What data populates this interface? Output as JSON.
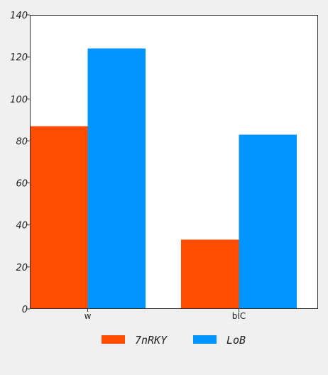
{
  "colors": {
    "page_background": "#f0f0f0",
    "plot_background": "#ffffff",
    "axis": "#333333"
  },
  "chart_data": {
    "type": "bar",
    "categories": [
      "w",
      "bIC"
    ],
    "series": [
      {
        "name": "7nRKY",
        "values": [
          87,
          33
        ],
        "color": "#ff4c00"
      },
      {
        "name": "LoB",
        "values": [
          124,
          83
        ],
        "color": "#0094ff"
      }
    ],
    "title": "",
    "xlabel": "",
    "ylabel": "",
    "ylim": [
      0,
      140
    ],
    "yticks": [
      0,
      20,
      40,
      60,
      80,
      100,
      120,
      140
    ],
    "grid": false,
    "legend_position": "bottom"
  }
}
